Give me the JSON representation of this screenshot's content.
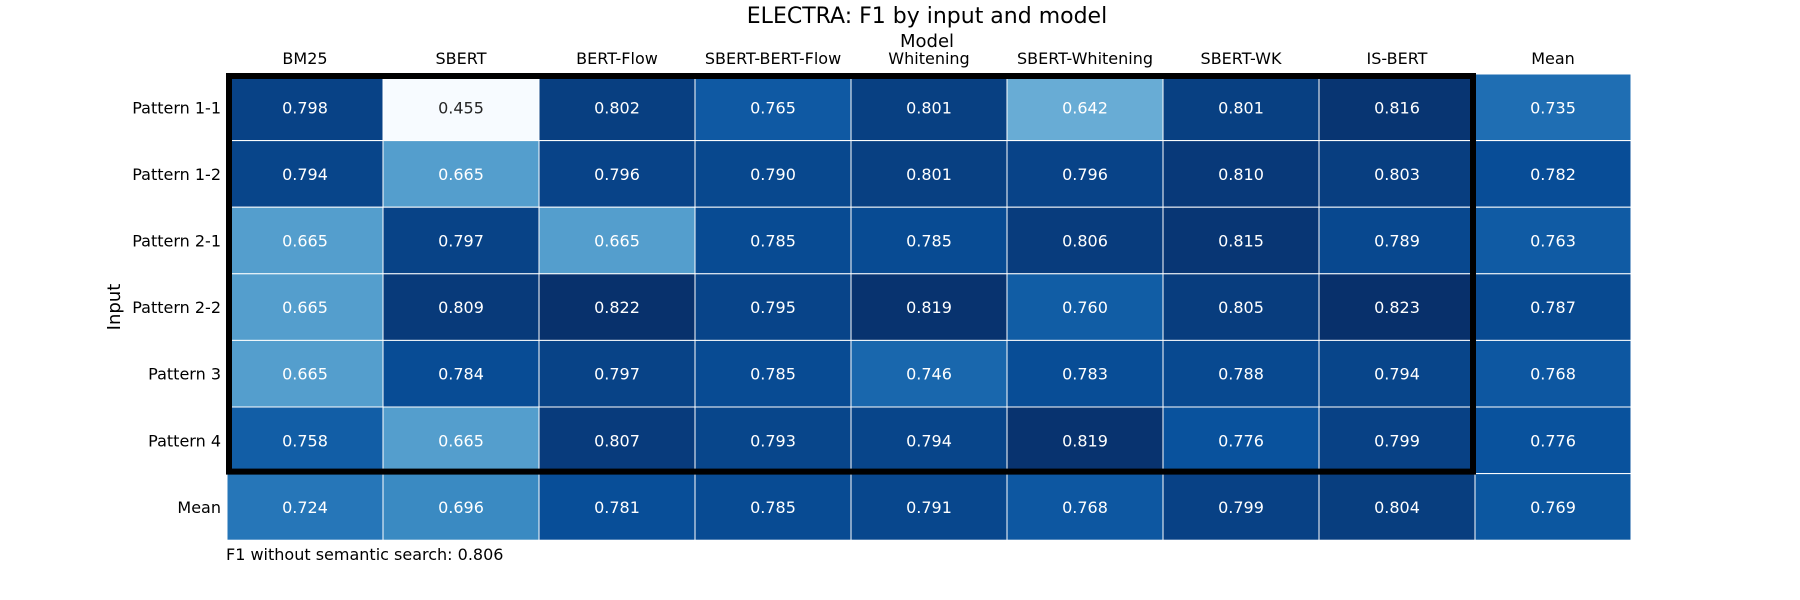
{
  "chart_data": {
    "type": "heatmap",
    "title": "ELECTRA: F1 by input and model",
    "xlabel": "Model",
    "ylabel": "Input",
    "columns": [
      "BM25",
      "SBERT",
      "BERT-Flow",
      "SBERT-BERT-Flow",
      "Whitening",
      "SBERT-Whitening",
      "SBERT-WK",
      "IS-BERT",
      "Mean"
    ],
    "rows": [
      "Pattern 1-1",
      "Pattern 1-2",
      "Pattern 2-1",
      "Pattern 2-2",
      "Pattern 3",
      "Pattern 4",
      "Mean"
    ],
    "values": [
      [
        0.798,
        0.455,
        0.802,
        0.765,
        0.801,
        0.642,
        0.801,
        0.816,
        0.735
      ],
      [
        0.794,
        0.665,
        0.796,
        0.79,
        0.801,
        0.796,
        0.81,
        0.803,
        0.782
      ],
      [
        0.665,
        0.797,
        0.665,
        0.785,
        0.785,
        0.806,
        0.815,
        0.789,
        0.763
      ],
      [
        0.665,
        0.809,
        0.822,
        0.795,
        0.819,
        0.76,
        0.805,
        0.823,
        0.787
      ],
      [
        0.665,
        0.784,
        0.797,
        0.785,
        0.746,
        0.783,
        0.788,
        0.794,
        0.768
      ],
      [
        0.758,
        0.665,
        0.807,
        0.793,
        0.794,
        0.819,
        0.776,
        0.799,
        0.776
      ],
      [
        0.724,
        0.696,
        0.781,
        0.785,
        0.791,
        0.768,
        0.799,
        0.804,
        0.769
      ]
    ],
    "colormap": "Blues",
    "color_range": [
      0.455,
      0.823
    ],
    "highlight": {
      "rows": [
        0,
        5
      ],
      "columns": [
        0,
        7
      ]
    },
    "footnote": "F1 without semantic search: 0.806"
  }
}
